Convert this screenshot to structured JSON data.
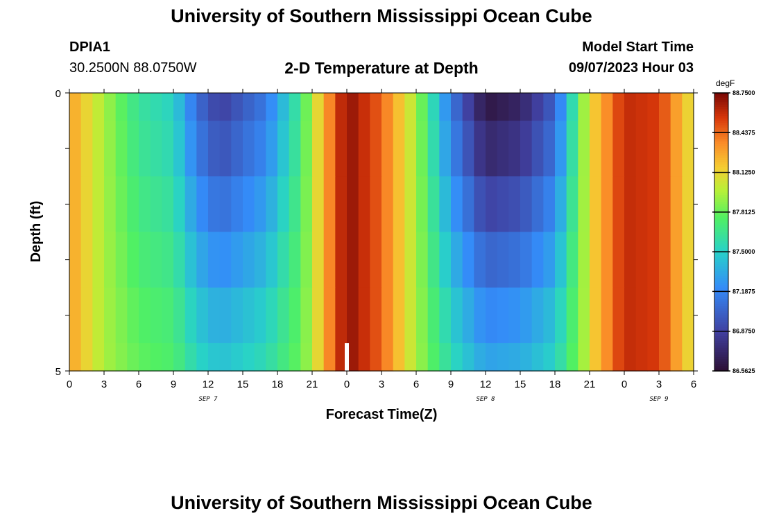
{
  "header": {
    "title": "University of Southern Mississippi Ocean Cube",
    "station_id": "DPIA1",
    "coordinates": "30.2500N  88.0750W",
    "subtitle": "2-D Temperature at Depth",
    "model_start_label": "Model Start Time",
    "model_start_value": "09/07/2023 Hour 03"
  },
  "footer": {
    "title": "University of Southern Mississippi Ocean Cube"
  },
  "chart_data": {
    "type": "heatmap",
    "title": "2-D Temperature at Depth",
    "xlabel": "Forecast Time(Z)",
    "ylabel": "Depth (ft)",
    "colorbar_unit": "degF",
    "colorbar_ticks": [
      "88.7500",
      "88.4375",
      "88.1250",
      "87.8125",
      "87.5000",
      "87.1875",
      "86.8750",
      "86.5625"
    ],
    "vmin": 86.5625,
    "vmax": 88.75,
    "x_hours": [
      0,
      54
    ],
    "y_range": [
      0,
      5
    ],
    "y_tick_labels": [
      "0",
      "5"
    ],
    "x_tick_labels": [
      "0",
      "3",
      "6",
      "9",
      "12",
      "15",
      "18",
      "21",
      "0",
      "3",
      "6",
      "9",
      "12",
      "15",
      "18",
      "21",
      "0",
      "3",
      "6"
    ],
    "date_labels": [
      {
        "text": "SEP 7",
        "hour": 12
      },
      {
        "text": "SEP 8",
        "hour": 36
      },
      {
        "text": "SEP 9",
        "hour": 51
      }
    ],
    "marker_hour": 24,
    "depth_bands": [
      "0-0.5 ft",
      "0.5-1.5 ft",
      "1.5-2.5 ft",
      "2.5-3.5 ft",
      "3.5-4.5 ft",
      "4.5-5 ft"
    ],
    "time_profile_key_hours": [
      0,
      3,
      6,
      9,
      11,
      13,
      17,
      20,
      22,
      24,
      27,
      30,
      33,
      36,
      39,
      42,
      45,
      48,
      51,
      54
    ],
    "time_profile_key_values": [
      88.3,
      87.95,
      87.65,
      87.55,
      87.15,
      86.95,
      87.2,
      87.7,
      88.25,
      88.72,
      88.45,
      87.95,
      87.2,
      86.72,
      86.8,
      87.1,
      88.1,
      88.6,
      88.55,
      88.05
    ],
    "band_trough_offsets": [
      -0.1,
      0.0,
      0.15,
      0.3,
      0.45,
      0.55
    ],
    "band_peak_offsets": [
      0.0,
      0.0,
      0.0,
      0.0,
      0.0,
      0.0
    ]
  }
}
